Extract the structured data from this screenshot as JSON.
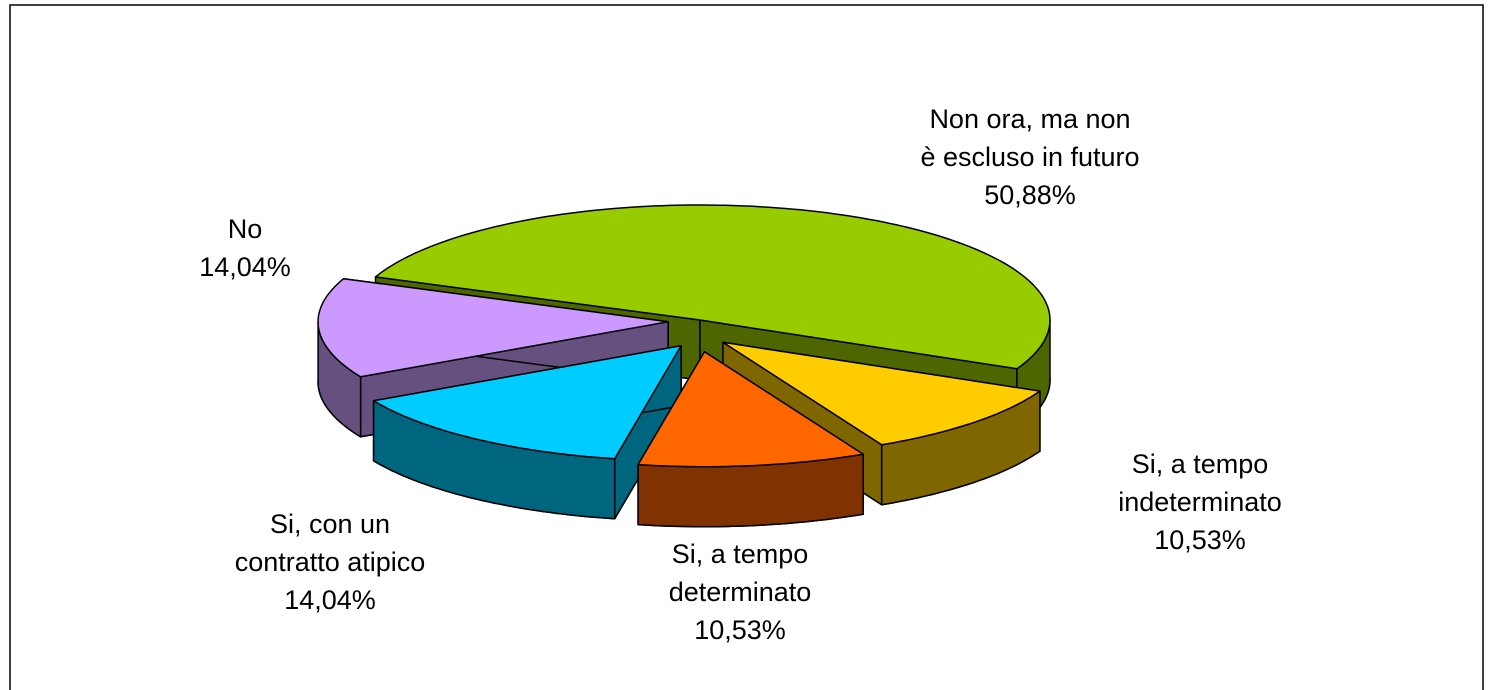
{
  "chart_data": {
    "type": "pie3d",
    "categories": [
      "Non ora, ma non\nè escluso in futuro",
      "Si, a tempo\nindeterminato",
      "Si, a tempo\ndeterminato",
      "Si, con un\ncontratto atipico",
      "No"
    ],
    "values": [
      50.88,
      10.53,
      10.53,
      14.04,
      14.04
    ],
    "value_labels": [
      "50,88%",
      "10,53%",
      "10,53%",
      "14,04%",
      "14,04%"
    ],
    "colors": [
      "#99cc00",
      "#ffcc00",
      "#ff6600",
      "#00ccff",
      "#cc99ff"
    ],
    "side_colors": [
      "#4d6600",
      "#806600",
      "#803300",
      "#006680",
      "#665080"
    ]
  }
}
